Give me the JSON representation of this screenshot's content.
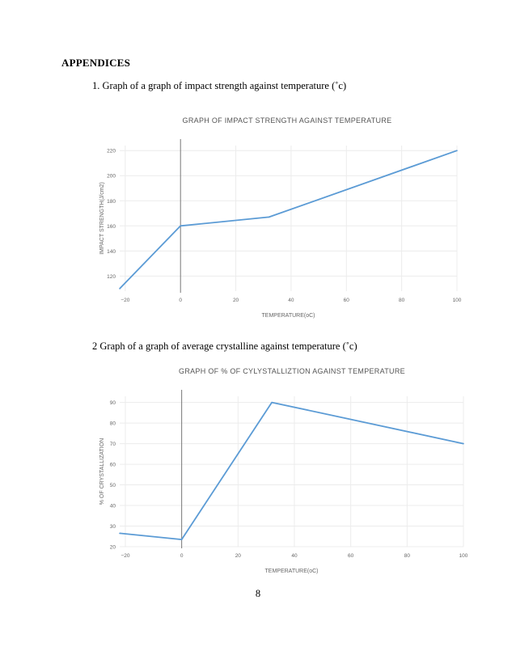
{
  "heading": "APPENDICES",
  "captions": {
    "first": "1. Graph of a graph of impact strength against temperature (˚c)",
    "second": "2 Graph of a graph of average crystalline against temperature (˚c)"
  },
  "page_number": "8",
  "chart_data": [
    {
      "type": "line",
      "title": "GRAPH OF IMPACT STRENGTH AGAINST TEMPERATURE",
      "xlabel": "TEMPERATURE(oC)",
      "ylabel": "IMPACT STRENGTH(J/cm2)",
      "xlim": [
        -22,
        100
      ],
      "ylim": [
        108,
        224
      ],
      "xticks": [
        -20,
        0,
        20,
        40,
        60,
        80,
        100
      ],
      "xtick_labels": [
        "−20",
        "0",
        "20",
        "40",
        "60",
        "80",
        "100"
      ],
      "yticks": [
        120,
        140,
        160,
        180,
        200,
        220
      ],
      "grid": true,
      "color": "#5b9bd5",
      "x": [
        -22,
        0,
        32,
        100
      ],
      "y": [
        110,
        160,
        167,
        220
      ]
    },
    {
      "type": "line",
      "title": "GRAPH OF % OF CYLYSTALLIZTION AGAINST TEMPERATURE",
      "xlabel": "TEMPERATURE(oC)",
      "ylabel": "% OF CRYSTALLIZATION",
      "xlim": [
        -22,
        100
      ],
      "ylim": [
        20,
        93
      ],
      "xticks": [
        -20,
        0,
        20,
        40,
        60,
        80,
        100
      ],
      "xtick_labels": [
        "−20",
        "0",
        "20",
        "40",
        "60",
        "80",
        "100"
      ],
      "yticks": [
        20,
        30,
        40,
        50,
        60,
        70,
        80,
        90
      ],
      "grid": true,
      "color": "#5b9bd5",
      "x": [
        -22,
        0,
        32,
        100
      ],
      "y": [
        26.5,
        23.5,
        90,
        70
      ]
    }
  ]
}
